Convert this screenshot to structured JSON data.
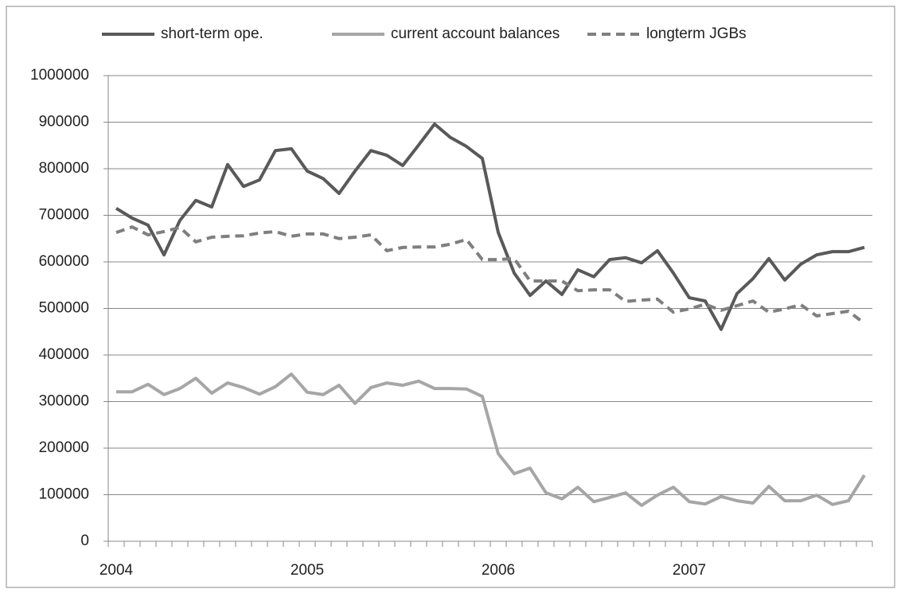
{
  "chart_data": {
    "type": "line",
    "categories": [
      "2004",
      null,
      null,
      null,
      null,
      null,
      null,
      null,
      null,
      null,
      null,
      null,
      "2005",
      null,
      null,
      null,
      null,
      null,
      null,
      null,
      null,
      null,
      null,
      null,
      "2006",
      null,
      null,
      null,
      null,
      null,
      null,
      null,
      null,
      null,
      null,
      null,
      "2007",
      null,
      null,
      null,
      null,
      null,
      null,
      null,
      null,
      null,
      null,
      null
    ],
    "series": [
      {
        "name": "short-term ope.",
        "color": "#595959",
        "dash": false,
        "values": [
          715000,
          694000,
          679000,
          615000,
          689000,
          732000,
          718000,
          809000,
          762000,
          776000,
          839000,
          843000,
          795000,
          779000,
          747000,
          795000,
          839000,
          829000,
          807000,
          851000,
          896000,
          867000,
          848000,
          822000,
          663000,
          576000,
          528000,
          559000,
          530000,
          583000,
          568000,
          605000,
          609000,
          598000,
          624000,
          576000,
          523000,
          516000,
          455000,
          532000,
          564000,
          607000,
          561000,
          595000,
          615000,
          622000,
          622000,
          631000
        ]
      },
      {
        "name": "current account balances",
        "color": "#a6a6a6",
        "dash": false,
        "values": [
          321000,
          321000,
          337000,
          315000,
          328000,
          350000,
          318000,
          340000,
          330000,
          316000,
          332000,
          359000,
          320000,
          315000,
          335000,
          296000,
          330000,
          340000,
          335000,
          344000,
          328000,
          328000,
          327000,
          311000,
          188000,
          145000,
          157000,
          104000,
          91000,
          116000,
          85000,
          94000,
          104000,
          77000,
          99000,
          116000,
          85000,
          80000,
          96000,
          87000,
          82000,
          118000,
          87000,
          87000,
          99000,
          79000,
          87000,
          142000
        ]
      },
      {
        "name": "longterm JGBs",
        "color": "#7f7f7f",
        "dash": true,
        "values": [
          663000,
          675000,
          658000,
          665000,
          674000,
          643000,
          653000,
          655000,
          656000,
          662000,
          665000,
          655000,
          660000,
          660000,
          650000,
          653000,
          658000,
          624000,
          631000,
          632000,
          632000,
          638000,
          648000,
          605000,
          605000,
          607000,
          559000,
          559000,
          559000,
          538000,
          540000,
          540000,
          515000,
          518000,
          520000,
          492000,
          499000,
          509000,
          496000,
          506000,
          516000,
          492000,
          499000,
          508000,
          484000,
          489000,
          494000,
          468000
        ]
      }
    ],
    "ylim": [
      0,
      1000000
    ],
    "yticks": [
      0,
      100000,
      200000,
      300000,
      400000,
      500000,
      600000,
      700000,
      800000,
      900000,
      1000000
    ],
    "grid": true,
    "legend": "top"
  }
}
